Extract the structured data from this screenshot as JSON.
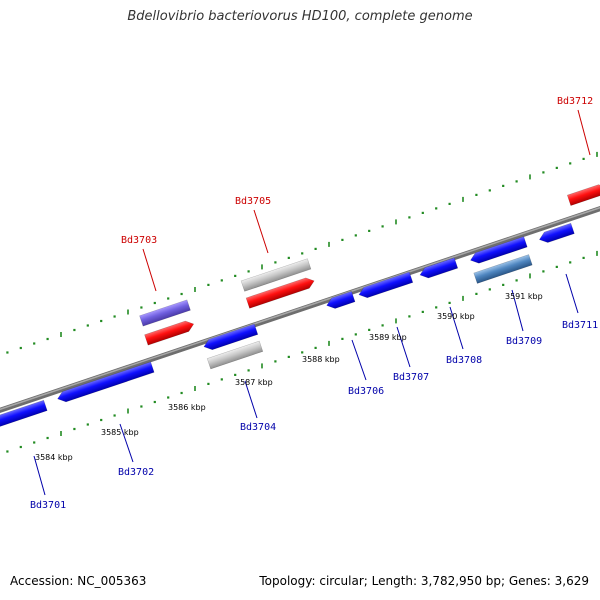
{
  "header": {
    "title": "Bdellovibrio bacteriovorus HD100, complete genome"
  },
  "footer": {
    "accession": "Accession: NC_005363",
    "summary": "Topology: circular; Length: 3,782,950 bp; Genes: 3,629"
  },
  "colors": {
    "forward_label": "#cc0000",
    "reverse_label": "#0000aa",
    "backbone": "#7a7a7a",
    "tick": "#228b22"
  },
  "scale": {
    "labels": [
      "3584 kbp",
      "3585 kbp",
      "3586 kbp",
      "3587 kbp",
      "3588 kbp",
      "3589 kbp",
      "3590 kbp",
      "3591 kbp"
    ]
  },
  "genes": [
    {
      "name": "Bd3701",
      "strand": "reverse"
    },
    {
      "name": "Bd3702",
      "strand": "reverse"
    },
    {
      "name": "Bd3703",
      "strand": "forward"
    },
    {
      "name": "Bd3704",
      "strand": "reverse"
    },
    {
      "name": "Bd3705",
      "strand": "forward"
    },
    {
      "name": "Bd3706",
      "strand": "reverse"
    },
    {
      "name": "Bd3707",
      "strand": "reverse"
    },
    {
      "name": "Bd3708",
      "strand": "reverse"
    },
    {
      "name": "Bd3709",
      "strand": "reverse"
    },
    {
      "name": "Bd3711",
      "strand": "reverse"
    },
    {
      "name": "Bd3712",
      "strand": "forward"
    }
  ]
}
